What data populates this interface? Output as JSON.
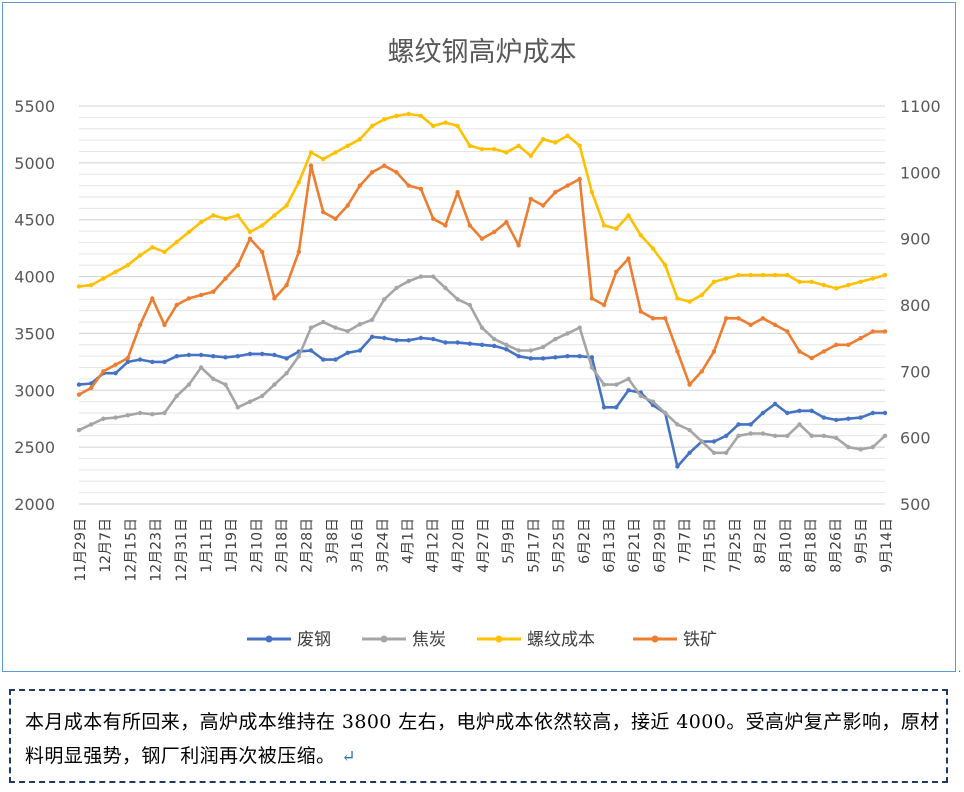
{
  "chart_data": {
    "type": "line",
    "title": "螺纹钢高炉成本",
    "left_axis": {
      "ylim": [
        2000,
        5500
      ],
      "ticks": [
        "2000",
        "2500",
        "3000",
        "3500",
        "4000",
        "4500",
        "5000",
        "5500"
      ]
    },
    "right_axis": {
      "ylim": [
        500,
        1100
      ],
      "ticks": [
        "500",
        "600",
        "700",
        "800",
        "900",
        "1000",
        "1100"
      ]
    },
    "grid": true,
    "legend_position": "bottom",
    "x_tick_labels": [
      "11月29日",
      "12月7日",
      "12月15日",
      "12月23日",
      "12月31日",
      "1月11日",
      "1月19日",
      "2月10日",
      "2月18日",
      "2月28日",
      "3月8日",
      "3月16日",
      "3月24日",
      "4月1日",
      "4月12日",
      "4月20日",
      "4月27日",
      "5月9日",
      "5月17日",
      "5月25日",
      "6月2日",
      "6月13日",
      "6月21日",
      "6月29日",
      "7月7日",
      "7月15日",
      "7月25日",
      "8月2日",
      "8月10日",
      "8月18日",
      "8月26日",
      "9月5日",
      "9月14日"
    ],
    "series": [
      {
        "name": "废钢",
        "axis": "left",
        "color": "#4472c4",
        "values": [
          3050,
          3060,
          3150,
          3150,
          3250,
          3270,
          3250,
          3250,
          3300,
          3310,
          3310,
          3300,
          3290,
          3300,
          3320,
          3320,
          3310,
          3280,
          3340,
          3350,
          3270,
          3270,
          3330,
          3350,
          3470,
          3460,
          3440,
          3440,
          3460,
          3450,
          3420,
          3420,
          3410,
          3400,
          3390,
          3360,
          3300,
          3280,
          3280,
          3290,
          3300,
          3300,
          3290,
          2850,
          2850,
          3000,
          2980,
          2870,
          2800,
          2330,
          2450,
          2550,
          2550,
          2600,
          2700,
          2700,
          2800,
          2880,
          2800,
          2820,
          2820,
          2760,
          2740,
          2750,
          2760,
          2800,
          2800
        ]
      },
      {
        "name": "焦炭",
        "axis": "left",
        "color": "#a5a5a5",
        "values": [
          2650,
          2700,
          2750,
          2760,
          2780,
          2800,
          2790,
          2800,
          2950,
          3050,
          3200,
          3100,
          3050,
          2850,
          2900,
          2950,
          3050,
          3150,
          3300,
          3550,
          3600,
          3550,
          3520,
          3580,
          3620,
          3800,
          3900,
          3960,
          4000,
          4000,
          3900,
          3800,
          3750,
          3550,
          3450,
          3400,
          3350,
          3350,
          3380,
          3450,
          3500,
          3550,
          3200,
          3050,
          3050,
          3100,
          2950,
          2900,
          2800,
          2700,
          2650,
          2550,
          2450,
          2450,
          2600,
          2620,
          2620,
          2600,
          2600,
          2700,
          2600,
          2600,
          2580,
          2500,
          2480,
          2500,
          2600
        ]
      },
      {
        "name": "螺纹成本",
        "axis": "right",
        "color": "#ffc000",
        "values": [
          828,
          830,
          840,
          850,
          860,
          875,
          887,
          880,
          895,
          910,
          925,
          935,
          930,
          935,
          910,
          920,
          935,
          950,
          985,
          1030,
          1020,
          1030,
          1040,
          1050,
          1070,
          1080,
          1085,
          1088,
          1085,
          1070,
          1075,
          1070,
          1040,
          1035,
          1035,
          1030,
          1040,
          1025,
          1050,
          1045,
          1055,
          1040,
          970,
          920,
          915,
          935,
          905,
          885,
          860,
          810,
          805,
          815,
          835,
          840,
          845,
          845,
          845,
          845,
          845,
          835,
          835,
          830,
          825,
          830,
          835,
          840,
          845
        ]
      },
      {
        "name": "铁矿",
        "axis": "right",
        "color": "#ed7d31",
        "values": [
          665,
          675,
          700,
          710,
          720,
          770,
          810,
          770,
          800,
          810,
          815,
          820,
          840,
          860,
          900,
          880,
          810,
          830,
          880,
          1010,
          940,
          930,
          950,
          980,
          1000,
          1010,
          1000,
          980,
          975,
          930,
          920,
          970,
          920,
          900,
          910,
          925,
          890,
          960,
          950,
          970,
          980,
          990,
          810,
          800,
          850,
          870,
          790,
          780,
          780,
          730,
          680,
          700,
          730,
          780,
          780,
          770,
          780,
          770,
          760,
          730,
          720,
          730,
          740,
          740,
          750,
          760,
          760
        ]
      }
    ]
  },
  "note": {
    "text": "本月成本有所回来，高炉成本维持在 3800 左右，电炉成本依然较高，接近 4000。受高炉复产影响，原材料明显强势，钢厂利润再次被压缩。",
    "return_mark": "↵"
  }
}
